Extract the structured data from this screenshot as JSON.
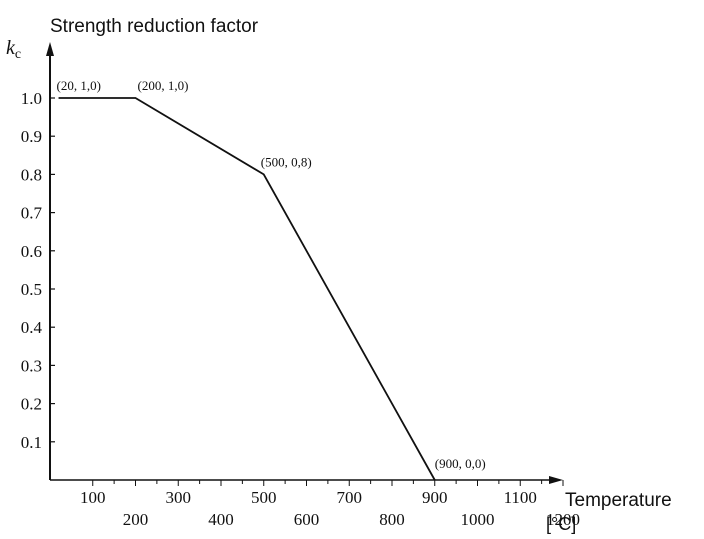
{
  "chart_data": {
    "type": "line",
    "title": "Strength reduction factor",
    "ylabel_symbol": "k",
    "ylabel_subscript": "c",
    "xlabel": "Temperature",
    "xunit": "[°C]",
    "xlim": [
      0,
      1300
    ],
    "ylim": [
      0,
      1.05
    ],
    "x_ticks_upper": [
      "100",
      "300",
      "500",
      "700",
      "900",
      "1100"
    ],
    "x_ticks_lower": [
      "200",
      "400",
      "600",
      "800",
      "1000",
      "1200"
    ],
    "y_ticks": [
      "0.1",
      "0.2",
      "0.3",
      "0.4",
      "0.5",
      "0.6",
      "0.7",
      "0.8",
      "0.9",
      "1.0"
    ],
    "series": [
      {
        "x": [
          20,
          200,
          500,
          900
        ],
        "y": [
          1.0,
          1.0,
          0.8,
          0.0
        ]
      }
    ],
    "annotations": [
      {
        "text": "(20, 1,0)",
        "x": 20,
        "y": 1.0
      },
      {
        "text": "(200, 1,0)",
        "x": 200,
        "y": 1.0
      },
      {
        "text": "(500, 0,8)",
        "x": 500,
        "y": 0.8
      },
      {
        "text": "(900, 0,0)",
        "x": 900,
        "y": 0.0
      }
    ],
    "grid": false,
    "line_color": "#111111"
  }
}
